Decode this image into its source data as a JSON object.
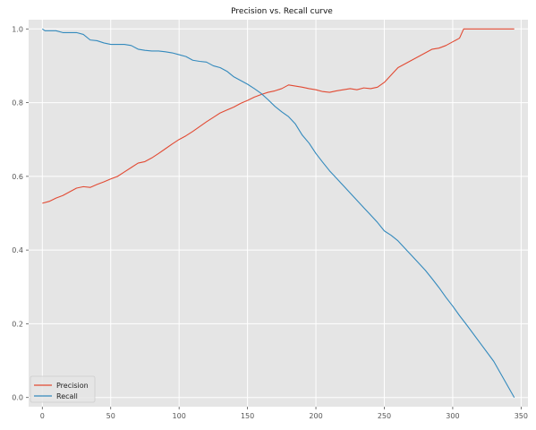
{
  "chart_data": {
    "type": "line",
    "title": "Precision vs. Recall curve",
    "xlabel": "",
    "ylabel": "",
    "xlim": [
      -10,
      355
    ],
    "ylim": [
      -0.025,
      1.025
    ],
    "x_ticks": [
      0,
      50,
      100,
      150,
      200,
      250,
      300,
      350
    ],
    "y_ticks": [
      0.0,
      0.2,
      0.4,
      0.6,
      0.8,
      1.0
    ],
    "x_tick_labels": [
      "0",
      "50",
      "100",
      "150",
      "200",
      "250",
      "300",
      "350"
    ],
    "y_tick_labels": [
      "0.0",
      "0.2",
      "0.4",
      "0.6",
      "0.8",
      "1.0"
    ],
    "grid": true,
    "background": "#e5e5e5",
    "legend_position": "lower-left",
    "series": [
      {
        "name": "Precision",
        "color": "#e24a33",
        "x": [
          0,
          5,
          10,
          15,
          20,
          25,
          30,
          35,
          40,
          45,
          50,
          55,
          60,
          65,
          70,
          75,
          80,
          85,
          90,
          95,
          100,
          105,
          110,
          115,
          120,
          125,
          130,
          135,
          140,
          145,
          150,
          155,
          160,
          165,
          170,
          175,
          180,
          185,
          190,
          195,
          200,
          205,
          210,
          215,
          220,
          225,
          230,
          235,
          240,
          245,
          250,
          255,
          260,
          265,
          270,
          275,
          280,
          285,
          290,
          295,
          300,
          305,
          308,
          315,
          325,
          335,
          345
        ],
        "y": [
          0.527,
          0.532,
          0.541,
          0.548,
          0.558,
          0.568,
          0.572,
          0.57,
          0.578,
          0.585,
          0.593,
          0.6,
          0.612,
          0.624,
          0.636,
          0.64,
          0.65,
          0.662,
          0.675,
          0.688,
          0.7,
          0.71,
          0.722,
          0.735,
          0.748,
          0.76,
          0.772,
          0.78,
          0.788,
          0.798,
          0.806,
          0.815,
          0.822,
          0.828,
          0.832,
          0.838,
          0.848,
          0.845,
          0.842,
          0.838,
          0.835,
          0.83,
          0.828,
          0.832,
          0.835,
          0.838,
          0.835,
          0.84,
          0.838,
          0.842,
          0.855,
          0.875,
          0.895,
          0.905,
          0.915,
          0.925,
          0.935,
          0.945,
          0.948,
          0.955,
          0.965,
          0.975,
          1.0,
          1.0,
          1.0,
          1.0,
          1.0
        ]
      },
      {
        "name": "Recall",
        "color": "#348abd",
        "x": [
          0,
          2,
          5,
          10,
          15,
          20,
          25,
          30,
          35,
          40,
          45,
          50,
          55,
          60,
          65,
          70,
          75,
          80,
          85,
          90,
          95,
          100,
          105,
          110,
          115,
          120,
          125,
          130,
          135,
          140,
          145,
          150,
          155,
          160,
          165,
          170,
          175,
          180,
          185,
          190,
          195,
          200,
          205,
          210,
          215,
          220,
          225,
          230,
          235,
          240,
          245,
          250,
          255,
          260,
          265,
          270,
          275,
          280,
          285,
          290,
          295,
          300,
          305,
          310,
          320,
          330,
          345
        ],
        "y": [
          1.0,
          0.995,
          0.995,
          0.995,
          0.99,
          0.99,
          0.99,
          0.985,
          0.97,
          0.968,
          0.962,
          0.958,
          0.958,
          0.958,
          0.955,
          0.945,
          0.942,
          0.94,
          0.94,
          0.938,
          0.935,
          0.93,
          0.925,
          0.915,
          0.912,
          0.91,
          0.9,
          0.895,
          0.885,
          0.87,
          0.86,
          0.85,
          0.838,
          0.825,
          0.808,
          0.79,
          0.775,
          0.762,
          0.742,
          0.712,
          0.69,
          0.662,
          0.638,
          0.615,
          0.595,
          0.575,
          0.555,
          0.535,
          0.515,
          0.495,
          0.475,
          0.452,
          0.44,
          0.425,
          0.405,
          0.385,
          0.365,
          0.345,
          0.322,
          0.298,
          0.272,
          0.248,
          0.222,
          0.198,
          0.148,
          0.098,
          0.0
        ]
      }
    ]
  }
}
